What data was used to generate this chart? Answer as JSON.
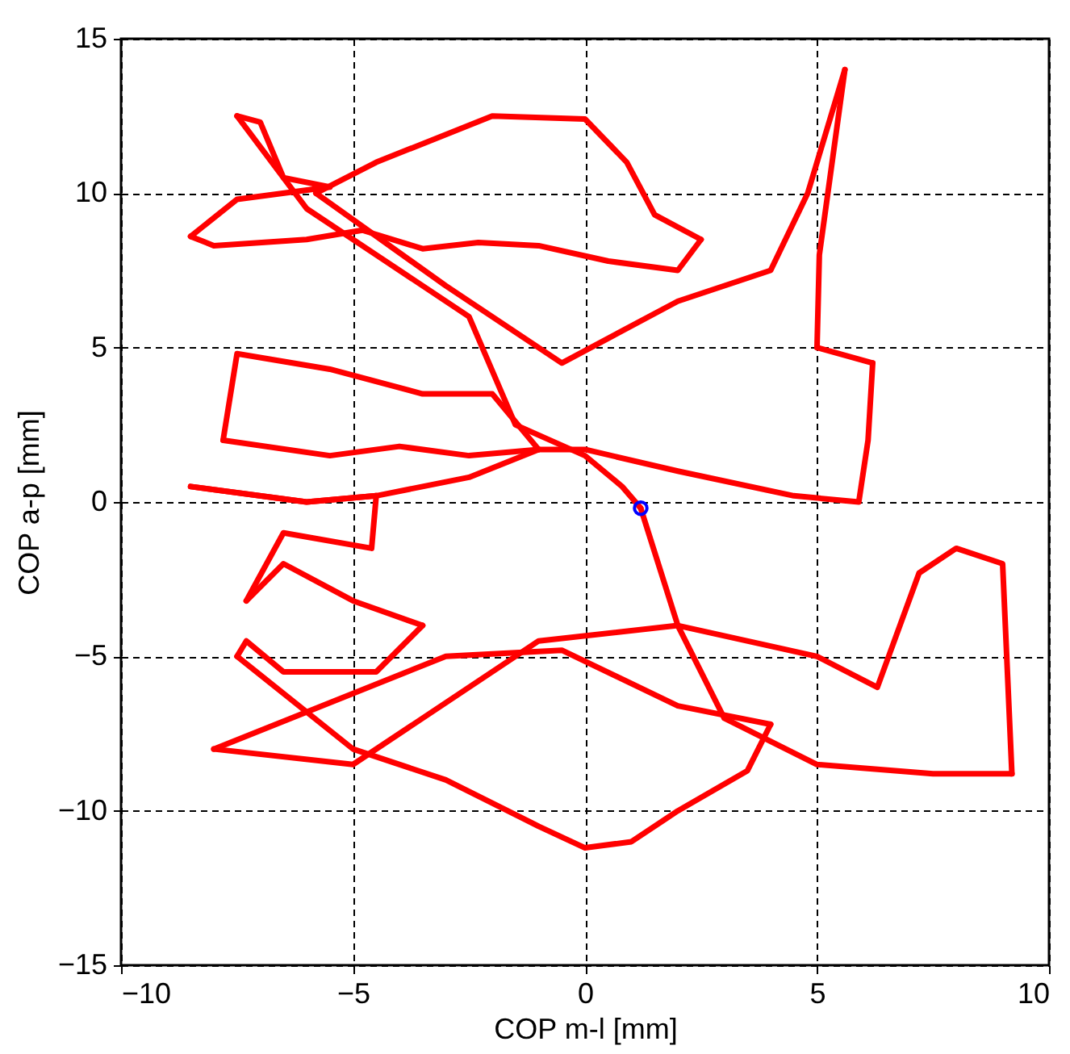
{
  "chart_data": {
    "type": "line",
    "xlabel": "COP m-l [mm]",
    "ylabel": "COP a-p [mm]",
    "xlim": [
      -10,
      10
    ],
    "ylim": [
      -15,
      15
    ],
    "xticks": [
      -10,
      -5,
      0,
      5,
      10
    ],
    "yticks": [
      -15,
      -10,
      -5,
      0,
      5,
      10,
      15
    ],
    "grid": true,
    "line_style": "solid",
    "series": [
      {
        "color": "#ff0000",
        "x": [
          1.2,
          0.8,
          0,
          -1.5,
          -2.5,
          -4.5,
          -6,
          -7.5
        ],
        "values": [
          -0.2,
          0.5,
          1.5,
          2.5,
          6,
          8,
          9.5,
          12.5
        ]
      },
      {
        "color": "#ff0000",
        "x": [
          -7.5,
          -7,
          -6.5,
          -5.5
        ],
        "values": [
          12.5,
          12.3,
          10.5,
          10.2
        ]
      },
      {
        "color": "#ff0000",
        "x": [
          -5.5,
          -7.5,
          -8.5
        ],
        "values": [
          10.2,
          9.8,
          8.6
        ]
      },
      {
        "color": "#ff0000",
        "x": [
          -8.5,
          -8,
          -6,
          -4.8,
          -3.5,
          -2.3,
          -1,
          0.5,
          2,
          2.5
        ],
        "values": [
          8.6,
          8.3,
          8.5,
          8.8,
          8.2,
          8.4,
          8.3,
          7.8,
          7.5,
          8.5
        ]
      },
      {
        "color": "#ff0000",
        "x": [
          2.5,
          1.5,
          0.9,
          0,
          -2,
          -4.5,
          -5.8
        ],
        "values": [
          8.5,
          9.3,
          11,
          12.4,
          12.5,
          11,
          10
        ]
      },
      {
        "color": "#ff0000",
        "x": [
          -5.8,
          -3,
          -0.5,
          2,
          4,
          4.8,
          5.6
        ],
        "values": [
          10,
          7,
          4.5,
          6.5,
          7.5,
          10,
          14
        ]
      },
      {
        "color": "#ff0000",
        "x": [
          5.6,
          5.05,
          5
        ],
        "values": [
          14,
          8,
          5
        ]
      },
      {
        "color": "#ff0000",
        "x": [
          5,
          6.2
        ],
        "values": [
          5,
          4.5
        ]
      },
      {
        "color": "#ff0000",
        "x": [
          6.2,
          6.1,
          5.9,
          4.5,
          2,
          0,
          -1,
          -2.5,
          -4,
          -5.5,
          -7.8
        ],
        "values": [
          4.5,
          2,
          0,
          0.2,
          1,
          1.7,
          1.7,
          1.5,
          1.8,
          1.5,
          2
        ]
      },
      {
        "color": "#ff0000",
        "x": [
          -7.8,
          -7.5,
          -5.5,
          -3.5,
          -2,
          -1
        ],
        "values": [
          2,
          4.8,
          4.3,
          3.5,
          3.5,
          1.7
        ]
      },
      {
        "color": "#ff0000",
        "x": [
          -1,
          -2.5,
          -4.5,
          -6,
          -8.5
        ],
        "values": [
          1.7,
          0.8,
          0.2,
          0,
          0.5
        ]
      },
      {
        "color": "#ff0000",
        "x": [
          -8.5,
          -6,
          -4.5
        ],
        "values": [
          0.5,
          0,
          0.2
        ]
      },
      {
        "color": "#ff0000",
        "x": [
          -4.5,
          -4.6,
          -6.5,
          -7.3
        ],
        "values": [
          0.2,
          -1.5,
          -1,
          -3.2
        ]
      },
      {
        "color": "#ff0000",
        "x": [
          -7.3,
          -6.5,
          -5,
          -3.5
        ],
        "values": [
          -3.2,
          -2,
          -3.2,
          -4
        ]
      },
      {
        "color": "#ff0000",
        "x": [
          -3.5,
          -4.5,
          -6.5,
          -7.3,
          -7.5
        ],
        "values": [
          -4,
          -5.5,
          -5.5,
          -4.5,
          -5
        ]
      },
      {
        "color": "#ff0000",
        "x": [
          -7.5,
          -5,
          -3,
          -1,
          0,
          1,
          2,
          3.5,
          4
        ],
        "values": [
          -5,
          -8,
          -9,
          -10.5,
          -11.2,
          -11,
          -10,
          -8.7,
          -7.2
        ]
      },
      {
        "color": "#ff0000",
        "x": [
          4,
          2,
          -0.5,
          -3,
          -5.5,
          -8
        ],
        "values": [
          -7.2,
          -6.6,
          -4.8,
          -5,
          -6.5,
          -8
        ]
      },
      {
        "color": "#ff0000",
        "x": [
          -8,
          -5,
          -1,
          2,
          5,
          6.3,
          7.2,
          8,
          9,
          9.2
        ],
        "values": [
          -8,
          -8.5,
          -4.5,
          -4,
          -5,
          -6,
          -2.3,
          -1.5,
          -2,
          -8.8
        ]
      },
      {
        "color": "#ff0000",
        "x": [
          9.2,
          7.5,
          5,
          3,
          2,
          1.2
        ],
        "values": [
          -8.8,
          -8.8,
          -8.5,
          -7,
          -4,
          -0.2
        ]
      },
      {
        "type": "scatter",
        "color": "#0000ff",
        "marker": "circle",
        "x": [
          1.2
        ],
        "values": [
          -0.2
        ]
      }
    ]
  }
}
